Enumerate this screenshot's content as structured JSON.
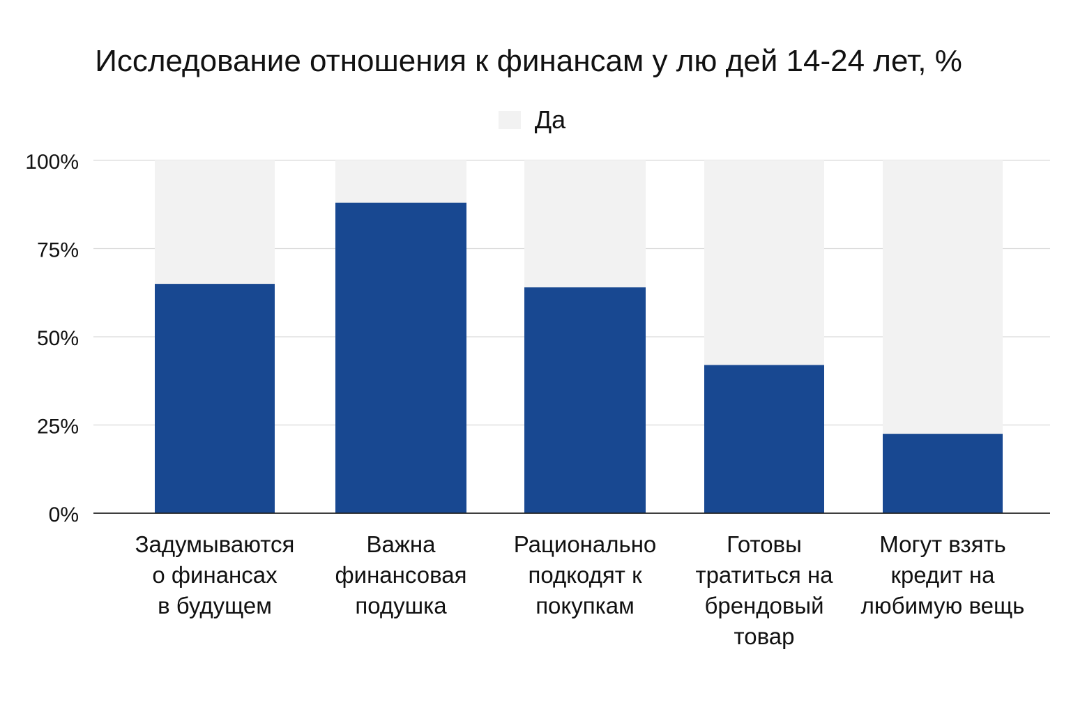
{
  "chart_data": {
    "type": "bar",
    "title": "Исследование отношения к финансам у лю дей 14-24 лет, %",
    "categories": [
      [
        "Задумываются",
        "о финансах",
        "в будущем"
      ],
      [
        "Важна",
        "финансовая",
        "подушка"
      ],
      [
        "Рационально",
        "подкодят к",
        "покупкам"
      ],
      [
        "Готовы",
        "тратиться на",
        "брендовый",
        "товар"
      ],
      [
        "Могут взять",
        "кредит на",
        "любимую вещь"
      ]
    ],
    "series": [
      {
        "name": "Да",
        "values": [
          65,
          88,
          64,
          42,
          22.5
        ],
        "color": "#184891"
      }
    ],
    "background_total": 100,
    "background_color": "#f2f2f2",
    "yticks": [
      "0%",
      "25%",
      "50%",
      "75%",
      "100%"
    ],
    "ytick_values": [
      0,
      25,
      50,
      75,
      100
    ],
    "ylim": [
      0,
      100
    ],
    "xlabel": "",
    "ylabel": "",
    "legend_position": "top-center",
    "grid": true
  }
}
